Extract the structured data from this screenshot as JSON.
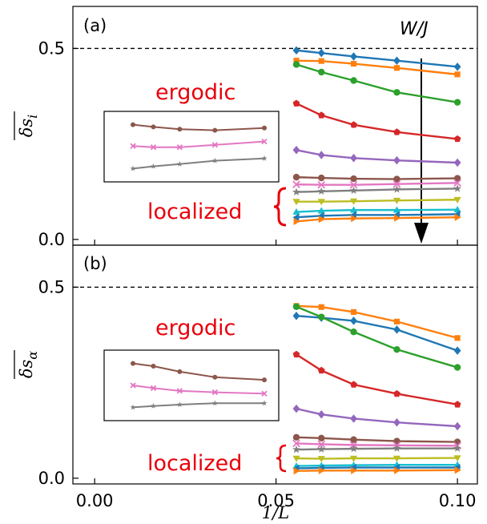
{
  "chart_data": [
    {
      "type": "line",
      "panel_label": "(a)",
      "ylabel": "δs_i",
      "xlabel": "",
      "xlim": [
        -0.006,
        0.1055
      ],
      "ylim": [
        -0.015,
        0.61
      ],
      "xticks": [
        "0.00",
        "0.05",
        "0.10"
      ],
      "xticks_values": [
        0.0,
        0.05,
        0.1
      ],
      "yticks": [
        "0.0",
        "0.5"
      ],
      "yticks_values": [
        0.0,
        0.5
      ],
      "reference_line": 0.5,
      "annotations": {
        "arrow_label": "W/J",
        "ergodic": "ergodic",
        "localized": "localized"
      },
      "x": [
        0.0556,
        0.0625,
        0.0714,
        0.0833,
        0.1
      ],
      "series": [
        {
          "color": "#1f77b4",
          "marker": "diamond",
          "values": [
            0.495,
            0.488,
            0.479,
            0.468,
            0.452
          ]
        },
        {
          "color": "#ff7f0e",
          "marker": "square",
          "values": [
            0.468,
            0.467,
            0.46,
            0.449,
            0.432
          ]
        },
        {
          "color": "#2ca02c",
          "marker": "circle",
          "values": [
            0.458,
            0.438,
            0.416,
            0.385,
            0.359
          ]
        },
        {
          "color": "#d62728",
          "marker": "pentagon",
          "values": [
            0.356,
            0.325,
            0.3,
            0.281,
            0.263
          ]
        },
        {
          "color": "#9467bd",
          "marker": "diamond",
          "values": [
            0.234,
            0.221,
            0.213,
            0.207,
            0.201
          ]
        },
        {
          "color": "#8c564b",
          "marker": "circle",
          "values": [
            0.163,
            0.161,
            0.159,
            0.158,
            0.16
          ]
        },
        {
          "color": "#e377c2",
          "marker": "x",
          "values": [
            0.144,
            0.143,
            0.143,
            0.145,
            0.148
          ]
        },
        {
          "color": "#7f7f7f",
          "marker": "star",
          "values": [
            0.124,
            0.126,
            0.128,
            0.131,
            0.133
          ]
        },
        {
          "color": "#bcbd22",
          "marker": "triangle-down",
          "values": [
            0.099,
            0.099,
            0.1,
            0.102,
            0.104
          ]
        },
        {
          "color": "#17becf",
          "marker": "triangle-up",
          "values": [
            0.072,
            0.075,
            0.077,
            0.077,
            0.078
          ]
        },
        {
          "color": "#1f77b4",
          "marker": "triangle-left",
          "values": [
            0.058,
            0.062,
            0.064,
            0.064,
            0.066
          ]
        },
        {
          "color": "#ff7f0e",
          "marker": "triangle-right",
          "values": [
            0.047,
            0.053,
            0.055,
            0.056,
            0.058
          ]
        }
      ],
      "inset_series": [
        {
          "color": "#8c564b",
          "marker": "circle",
          "values": [
            0.163,
            0.161,
            0.159,
            0.158,
            0.16
          ]
        },
        {
          "color": "#e377c2",
          "marker": "x",
          "values": [
            0.144,
            0.143,
            0.143,
            0.145,
            0.148
          ]
        },
        {
          "color": "#7f7f7f",
          "marker": "star",
          "values": [
            0.124,
            0.126,
            0.128,
            0.131,
            0.133
          ]
        }
      ]
    },
    {
      "type": "line",
      "panel_label": "(b)",
      "ylabel": "δs_α",
      "xlabel": "1/L",
      "xlim": [
        -0.006,
        0.1055
      ],
      "ylim": [
        -0.015,
        0.61
      ],
      "xticks": [
        "0.00",
        "0.05",
        "0.10"
      ],
      "xticks_values": [
        0.0,
        0.05,
        0.1
      ],
      "yticks": [
        "0.0",
        "0.5"
      ],
      "yticks_values": [
        0.0,
        0.5
      ],
      "reference_line": 0.5,
      "annotations": {
        "ergodic": "ergodic",
        "localized": "localized"
      },
      "x": [
        0.0556,
        0.0625,
        0.0714,
        0.0833,
        0.1
      ],
      "series": [
        {
          "color": "#1f77b4",
          "marker": "diamond",
          "values": [
            0.425,
            0.42,
            0.412,
            0.389,
            0.334
          ]
        },
        {
          "color": "#ff7f0e",
          "marker": "square",
          "values": [
            0.451,
            0.448,
            0.435,
            0.41,
            0.367
          ]
        },
        {
          "color": "#2ca02c",
          "marker": "circle",
          "values": [
            0.449,
            0.422,
            0.383,
            0.337,
            0.29
          ]
        },
        {
          "color": "#d62728",
          "marker": "pentagon",
          "values": [
            0.324,
            0.282,
            0.245,
            0.221,
            0.193
          ]
        },
        {
          "color": "#9467bd",
          "marker": "diamond",
          "values": [
            0.182,
            0.167,
            0.156,
            0.146,
            0.136
          ]
        },
        {
          "color": "#8c564b",
          "marker": "circle",
          "values": [
            0.107,
            0.105,
            0.101,
            0.097,
            0.095
          ]
        },
        {
          "color": "#e377c2",
          "marker": "x",
          "values": [
            0.091,
            0.089,
            0.087,
            0.086,
            0.085
          ]
        },
        {
          "color": "#7f7f7f",
          "marker": "star",
          "values": [
            0.075,
            0.076,
            0.077,
            0.078,
            0.078
          ]
        },
        {
          "color": "#bcbd22",
          "marker": "triangle-down",
          "values": [
            0.052,
            0.051,
            0.052,
            0.052,
            0.053
          ]
        },
        {
          "color": "#17becf",
          "marker": "triangle-up",
          "values": [
            0.032,
            0.033,
            0.034,
            0.035,
            0.035
          ]
        },
        {
          "color": "#1f77b4",
          "marker": "triangle-left",
          "values": [
            0.026,
            0.027,
            0.028,
            0.028,
            0.028
          ]
        },
        {
          "color": "#ff7f0e",
          "marker": "triangle-right",
          "values": [
            0.019,
            0.02,
            0.02,
            0.02,
            0.021
          ]
        }
      ],
      "inset_series": [
        {
          "color": "#8c564b",
          "marker": "circle",
          "values": [
            0.107,
            0.105,
            0.101,
            0.097,
            0.095
          ]
        },
        {
          "color": "#e377c2",
          "marker": "x",
          "values": [
            0.091,
            0.089,
            0.087,
            0.086,
            0.085
          ]
        },
        {
          "color": "#7f7f7f",
          "marker": "star",
          "values": [
            0.075,
            0.076,
            0.077,
            0.078,
            0.078
          ]
        }
      ]
    }
  ]
}
